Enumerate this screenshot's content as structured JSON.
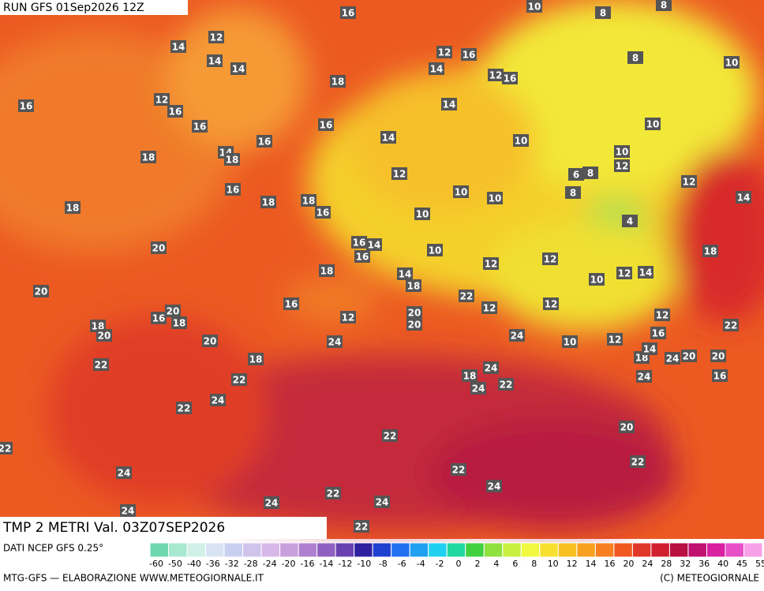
{
  "header": {
    "run": "RUN GFS 01Sep2026 12Z"
  },
  "map": {
    "temperature_labels": [
      16,
      12,
      14,
      14,
      14,
      12,
      16,
      14,
      12,
      16,
      18,
      16,
      12,
      16,
      14,
      16,
      16,
      16,
      14,
      14,
      18,
      18,
      12,
      16,
      18,
      18,
      16,
      18,
      10,
      10,
      10,
      16,
      14,
      16,
      10,
      20,
      18,
      14,
      18,
      20,
      16,
      20,
      16,
      18,
      18,
      20,
      20,
      12,
      20,
      20,
      24,
      12,
      12,
      22,
      12,
      24,
      12,
      22,
      18,
      22,
      24,
      22,
      18,
      24,
      24,
      22,
      22,
      24,
      22,
      24,
      24,
      22,
      24,
      24,
      22,
      22,
      20,
      22,
      24,
      22,
      18,
      24,
      20,
      20,
      16,
      14,
      16,
      12,
      12,
      18,
      10,
      10,
      12,
      14,
      18,
      12,
      14,
      22,
      10,
      12,
      10,
      10,
      6,
      8,
      8,
      4,
      8,
      8,
      8,
      10,
      10
    ]
  },
  "footer": {
    "title": "TMP 2 METRI Val. 03Z07SEP2026",
    "source": "DATI NCEP GFS 0.25°",
    "credit": "MTG-GFS — ELABORAZIONE WWW.METEOGIORNALE.IT",
    "copyright": "(C) METEOGIORNALE"
  },
  "colorbar": {
    "ticks": [
      -60,
      -50,
      -40,
      -36,
      -32,
      -28,
      -24,
      -20,
      -16,
      -14,
      -12,
      -10,
      -8,
      -6,
      -4,
      -2,
      0,
      2,
      4,
      6,
      8,
      10,
      12,
      14,
      16,
      20,
      24,
      28,
      32,
      36,
      40,
      45,
      55
    ],
    "colors": [
      "#6fd8b0",
      "#a8e8d0",
      "#d0f0e8",
      "#d8e4f4",
      "#c8d0f0",
      "#d0c4ec",
      "#d8b8e8",
      "#c8a0dc",
      "#b080d0",
      "#9060c0",
      "#6a40b0",
      "#3020a0",
      "#2040d0",
      "#2070f0",
      "#20a0f0",
      "#20d0f0",
      "#20d8a0",
      "#40d040",
      "#90e040",
      "#c8f040",
      "#f0f840",
      "#f8e030",
      "#f8c020",
      "#f8a020",
      "#f88020",
      "#f05820",
      "#e03828",
      "#d02030",
      "#b81040",
      "#c01070",
      "#d820a0",
      "#e850c8",
      "#f8a0e8"
    ]
  }
}
